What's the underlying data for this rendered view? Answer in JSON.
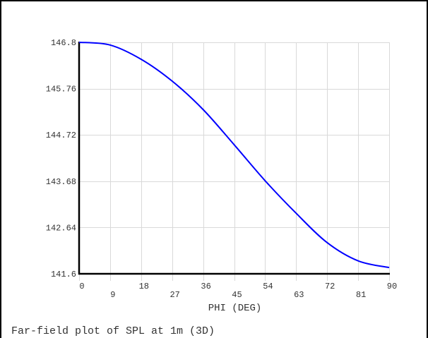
{
  "chart_data": {
    "type": "line",
    "title": "",
    "caption": "Far-field plot of SPL at 1m (3D)",
    "xlabel": "PHI  (DEG)",
    "ylabel": "",
    "xlim": [
      0,
      90
    ],
    "ylim": [
      141.6,
      146.8
    ],
    "x_ticks": [
      0,
      9,
      18,
      27,
      36,
      45,
      54,
      63,
      72,
      81,
      90
    ],
    "x_tick_labels": [
      "0",
      "9",
      "18",
      "27",
      "36",
      "45",
      "54",
      "63",
      "72",
      "81",
      "90"
    ],
    "y_ticks": [
      141.6,
      142.64,
      143.68,
      144.72,
      145.76,
      146.8
    ],
    "y_tick_labels": [
      "141.6",
      "142.64",
      "143.68",
      "144.72",
      "145.76",
      "146.8"
    ],
    "grid": true,
    "legend": null,
    "series": [
      {
        "name": "SPL",
        "color": "#0000ff",
        "x": [
          0,
          9,
          18,
          27,
          36,
          45,
          54,
          63,
          72,
          81,
          90
        ],
        "values": [
          146.8,
          146.74,
          146.42,
          145.93,
          145.29,
          144.5,
          143.69,
          142.96,
          142.3,
          141.89,
          141.74
        ]
      }
    ]
  },
  "colors": {
    "curve": "#0000ff",
    "grid": "#d9d9d9",
    "axis": "#000000",
    "text": "#333333"
  }
}
